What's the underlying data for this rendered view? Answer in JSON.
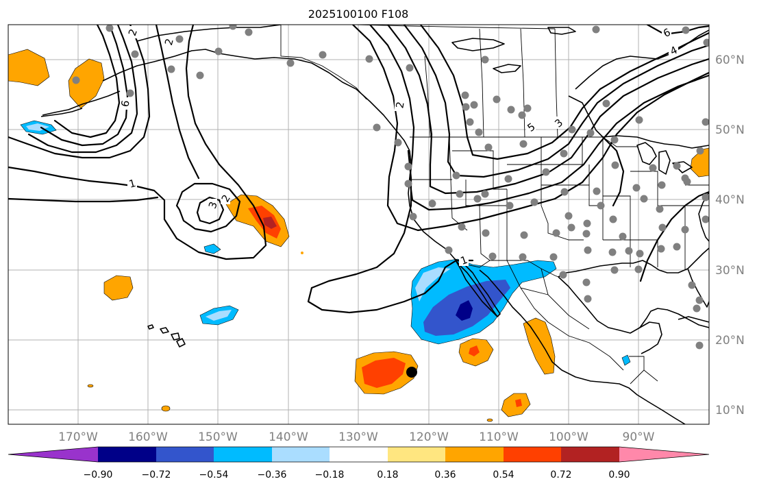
{
  "title": "2025100100 F108",
  "lat_labels": [
    "10°N",
    "20°N",
    "30°N",
    "40°N",
    "50°N",
    "60°N"
  ],
  "lon_labels": [
    "170°W",
    "160°W",
    "150°W",
    "140°W",
    "130°W",
    "120°W",
    "110°W",
    "100°W",
    "90°W"
  ],
  "colorbar": {
    "ticks": [
      "−0.90",
      "−0.72",
      "−0.54",
      "−0.36",
      "−0.18",
      "0.18",
      "0.36",
      "0.54",
      "0.72",
      "0.90"
    ],
    "colors": [
      "#9933cc",
      "#000088",
      "#3355cc",
      "#00bbff",
      "#aaddff",
      "#ffffff",
      "#ffe680",
      "#ffa500",
      "#ff4000",
      "#b22222",
      "#ff88aa"
    ]
  },
  "contour_labels": [
    "1",
    "2",
    "2",
    "3",
    "2",
    "4",
    "5",
    "3",
    "6",
    "1",
    "6",
    "2"
  ],
  "colors": {
    "station": "#808080",
    "marker": "#000000",
    "contour": "#000000",
    "grid": "#b0b0b0"
  }
}
